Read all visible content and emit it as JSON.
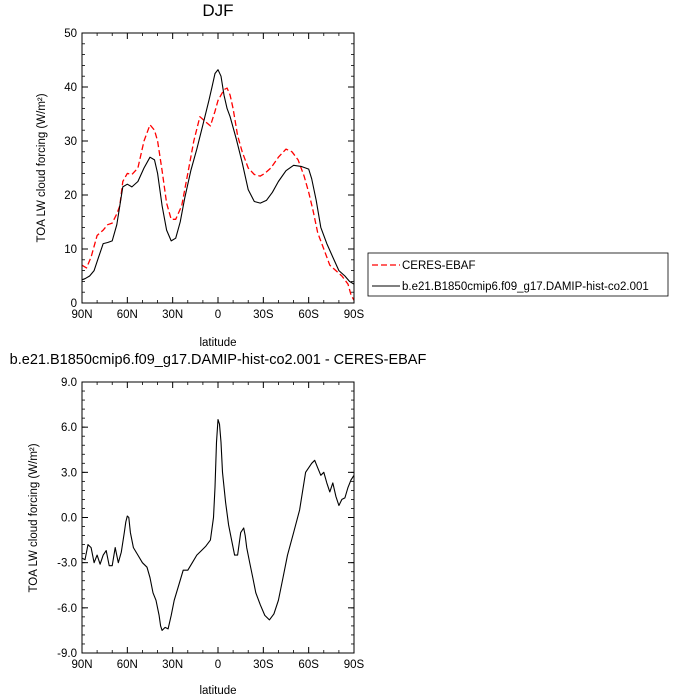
{
  "chart_data": [
    {
      "type": "line",
      "title": "DJF",
      "xlabel": "latitude",
      "ylabel": "TOA LW cloud forcing (W/m²)",
      "x_ticks": [
        "90N",
        "60N",
        "30N",
        "0",
        "30S",
        "60S",
        "90S"
      ],
      "x_range": [
        90,
        -90
      ],
      "ylim": [
        0,
        50
      ],
      "y_ticks": [
        "0",
        "10",
        "20",
        "30",
        "40",
        "50"
      ],
      "grid": false,
      "legend_position": "right",
      "series": [
        {
          "name": "CERES-EBAF",
          "color": "#ff0000",
          "dash": "dashed",
          "x": [
            90,
            87,
            84,
            80,
            76,
            73,
            70,
            67,
            65,
            63,
            60,
            57,
            53,
            49,
            45,
            42,
            40,
            37,
            34,
            31,
            28,
            24,
            20,
            16,
            12,
            8,
            5,
            2,
            0,
            -2,
            -4,
            -6,
            -8,
            -10,
            -13,
            -16,
            -20,
            -24,
            -28,
            -31,
            -35,
            -40,
            -45,
            -49,
            -53,
            -57,
            -60,
            -63,
            -66,
            -70,
            -74,
            -78,
            -82,
            -86,
            -88,
            -90
          ],
          "y": [
            7.0,
            6.5,
            8.5,
            12.5,
            13.5,
            14.5,
            14.8,
            16.5,
            18.0,
            22.5,
            24.0,
            23.8,
            25.0,
            30.0,
            33.0,
            32.0,
            30.0,
            24.5,
            18.5,
            15.5,
            15.5,
            18.0,
            24.0,
            30.0,
            34.5,
            33.5,
            32.8,
            35.5,
            37.5,
            38.5,
            39.5,
            39.8,
            38.5,
            36.0,
            31.0,
            28.0,
            25.0,
            23.8,
            23.5,
            24.0,
            25.0,
            27.0,
            28.5,
            28.0,
            26.5,
            23.5,
            20.5,
            17.0,
            13.0,
            10.0,
            7.0,
            6.0,
            5.0,
            3.5,
            1.5,
            0.5
          ]
        },
        {
          "name": "b.e21.B1850cmip6.f09_g17.DAMIP-hist-co2.001",
          "color": "#000000",
          "dash": "solid",
          "x": [
            90,
            88,
            85,
            82,
            79,
            76,
            73,
            70,
            67,
            63,
            60,
            57,
            53,
            49,
            45,
            42,
            40,
            37,
            34,
            31,
            28,
            25,
            22,
            18,
            14,
            10,
            6,
            4,
            2,
            0,
            -2,
            -4,
            -6,
            -8,
            -12,
            -16,
            -20,
            -24,
            -28,
            -32,
            -36,
            -40,
            -45,
            -50,
            -55,
            -60,
            -62,
            -65,
            -68,
            -72,
            -76,
            -80,
            -84,
            -87,
            -90
          ],
          "y": [
            4.3,
            4.5,
            5.0,
            6.0,
            8.5,
            11.0,
            11.2,
            11.5,
            14.5,
            21.5,
            22.0,
            21.5,
            22.5,
            25.0,
            27.0,
            26.5,
            24.0,
            18.0,
            13.5,
            11.5,
            12.0,
            15.0,
            19.5,
            24.5,
            28.5,
            33.0,
            37.5,
            40.0,
            42.5,
            43.2,
            42.0,
            38.5,
            36.0,
            34.5,
            30.5,
            26.0,
            21.0,
            18.8,
            18.5,
            19.0,
            20.5,
            22.5,
            24.5,
            25.5,
            25.3,
            24.8,
            23.0,
            19.0,
            14.0,
            11.0,
            8.5,
            6.0,
            5.0,
            4.0,
            3.5
          ]
        }
      ]
    },
    {
      "type": "line",
      "title": "b.e21.B1850cmip6.f09_g17.DAMIP-hist-co2.001 - CERES-EBAF",
      "xlabel": "latitude",
      "ylabel": "TOA LW cloud forcing (W/m²)",
      "x_ticks": [
        "90N",
        "60N",
        "30N",
        "0",
        "30S",
        "60S",
        "90S"
      ],
      "x_range": [
        90,
        -90
      ],
      "ylim": [
        -9,
        9
      ],
      "y_ticks": [
        "-9.0",
        "-6.0",
        "-3.0",
        "0.0",
        "3.0",
        "6.0",
        "9.0"
      ],
      "grid": false,
      "series": [
        {
          "name": "",
          "color": "#000000",
          "dash": "solid",
          "x": [
            90,
            88,
            86,
            84,
            82,
            80,
            78,
            76,
            74,
            72,
            70,
            68,
            66,
            64,
            62,
            61,
            60,
            59,
            58,
            56,
            53,
            50,
            47,
            45,
            43,
            41,
            39,
            38,
            37,
            35,
            33,
            31,
            29,
            26,
            23,
            20,
            17,
            14,
            11,
            8,
            5,
            3,
            2,
            1,
            0,
            -1,
            -2,
            -3,
            -5,
            -7,
            -9,
            -11,
            -13,
            -15,
            -17,
            -18,
            -19,
            -21,
            -23,
            -25,
            -28,
            -31,
            -34,
            -37,
            -40,
            -43,
            -46,
            -50,
            -54,
            -58,
            -62,
            -64,
            -66,
            -68,
            -70,
            -72,
            -74,
            -76,
            -78,
            -80,
            -82,
            -84,
            -86,
            -88,
            -90
          ],
          "y": [
            -2.7,
            -2.8,
            -1.8,
            -2.0,
            -3.0,
            -2.5,
            -3.1,
            -2.5,
            -2.2,
            -3.2,
            -3.2,
            -2.0,
            -3.0,
            -2.3,
            -1.0,
            -0.3,
            0.1,
            0.0,
            -1.0,
            -2.0,
            -2.5,
            -3.0,
            -3.3,
            -4.0,
            -5.0,
            -5.5,
            -6.5,
            -7.2,
            -7.5,
            -7.3,
            -7.4,
            -6.5,
            -5.5,
            -4.5,
            -3.5,
            -3.5,
            -3.0,
            -2.5,
            -2.2,
            -1.9,
            -1.5,
            0.0,
            2.0,
            5.0,
            6.5,
            6.2,
            5.0,
            3.0,
            1.0,
            -0.5,
            -1.5,
            -2.5,
            -2.5,
            -1.0,
            -0.7,
            -1.2,
            -2.0,
            -3.0,
            -4.0,
            -5.0,
            -5.8,
            -6.5,
            -6.8,
            -6.4,
            -5.5,
            -4.0,
            -2.5,
            -1.0,
            0.5,
            3.0,
            3.6,
            3.8,
            3.3,
            2.8,
            3.0,
            2.3,
            1.7,
            2.3,
            1.4,
            0.8,
            1.2,
            1.3,
            2.0,
            2.5,
            2.8
          ]
        }
      ]
    }
  ]
}
